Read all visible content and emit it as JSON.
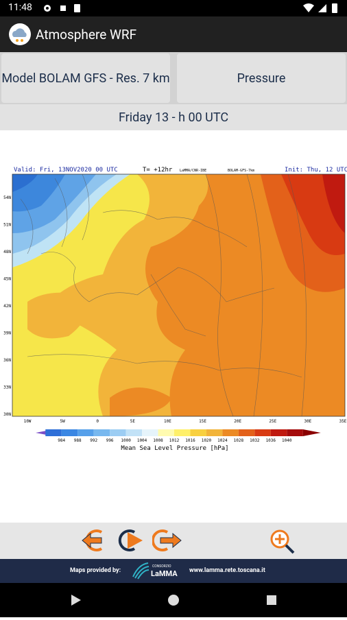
{
  "status_bar": {
    "time": "11:48"
  },
  "app_bar": {
    "title": "Atmosphere WRF"
  },
  "selectors": {
    "model": "Model BOLAM GFS - Res. 7 km",
    "variable": "Pressure"
  },
  "date": "Friday 13 - h 00 UTC",
  "map": {
    "valid": "Valid: Fri, 13NOV2020   00 UTC",
    "lead": "T= +12hr",
    "source": "LaMMA/CNR-IBE",
    "model": "BOLAM-GFS-7km",
    "init": "Init: Thu, 12 UTC",
    "lat_labels": [
      "54N",
      "51N",
      "48N",
      "45N",
      "42N",
      "39N",
      "36N",
      "33N",
      "30N"
    ],
    "lon_labels": [
      "10W",
      "5W",
      "0",
      "5E",
      "10E",
      "15E",
      "20E",
      "25E",
      "30E",
      "35E"
    ],
    "colorbar_labels": [
      "984",
      "988",
      "992",
      "996",
      "1000",
      "1004",
      "1008",
      "1012",
      "1016",
      "1020",
      "1024",
      "1028",
      "1032",
      "1036",
      "1040"
    ],
    "colorbar_title": "Mean Sea Level Pressure [hPa]"
  },
  "footer": {
    "provided": "Maps provided by:",
    "consortium": "CONSORZIO",
    "brand": "LaMMA",
    "url": "www.lamma.rete.toscana.it"
  }
}
